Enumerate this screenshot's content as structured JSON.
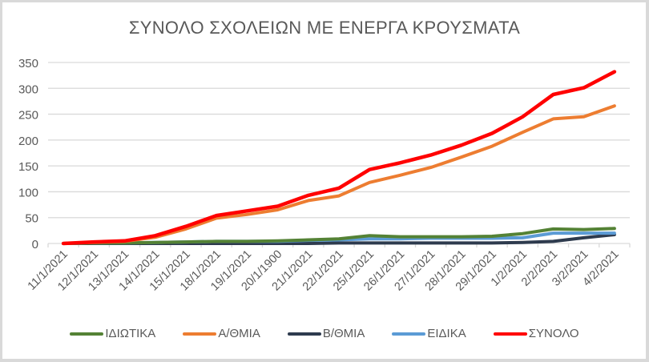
{
  "chart_data": {
    "type": "line",
    "title": "ΣΥΝΟΛΟ ΣΧΟΛΕΙΩΝ ΜΕ ΕΝΕΡΓΑ ΚΡΟΥΣΜΑΤΑ",
    "xlabel": "",
    "ylabel": "",
    "ylim": [
      0,
      350
    ],
    "yticks": [
      0,
      50,
      100,
      150,
      200,
      250,
      300,
      350
    ],
    "grid": true,
    "legend_position": "bottom",
    "categories": [
      "11/1/2021",
      "12/1/2021",
      "13/1/2021",
      "14/1/2021",
      "15/1/2021",
      "18/1/2021",
      "19/1/2021",
      "20/1/1900",
      "21/1/2021",
      "22/1/2021",
      "25/1/2021",
      "26/1/2021",
      "27/1/2021",
      "28/1/2021",
      "29/1/2021",
      "1/2/2021",
      "2/2/2021",
      "3/2/2021",
      "4/2/2021"
    ],
    "series": [
      {
        "name": "ΙΔΙΩΤΙΚΑ",
        "color": "#548235",
        "values": [
          0,
          1,
          1,
          2,
          3,
          4,
          4,
          5,
          7,
          9,
          15,
          13,
          13,
          13,
          14,
          19,
          28,
          27,
          29
        ]
      },
      {
        "name": "Α/ΘΜΙΑ",
        "color": "#ed7d31",
        "values": [
          0,
          2,
          4,
          12,
          28,
          49,
          56,
          65,
          83,
          92,
          118,
          132,
          147,
          167,
          188,
          215,
          241,
          245,
          266
        ]
      },
      {
        "name": "Β/ΘΜΙΑ",
        "color": "#2e3b4e",
        "values": [
          0,
          0,
          0,
          0,
          0,
          0,
          0,
          0,
          0,
          1,
          1,
          1,
          1,
          1,
          1,
          2,
          4,
          11,
          17
        ]
      },
      {
        "name": "ΕΙΔΙΚΑ",
        "color": "#5b9bd5",
        "values": [
          0,
          1,
          1,
          2,
          3,
          4,
          4,
          4,
          6,
          7,
          9,
          9,
          10,
          10,
          10,
          11,
          20,
          20,
          20
        ]
      },
      {
        "name": "ΣΥΝΟΛΟ",
        "color": "#ff0000",
        "values": [
          0,
          3,
          5,
          15,
          33,
          54,
          63,
          72,
          93,
          107,
          143,
          156,
          171,
          190,
          213,
          245,
          288,
          301,
          332
        ]
      }
    ]
  }
}
